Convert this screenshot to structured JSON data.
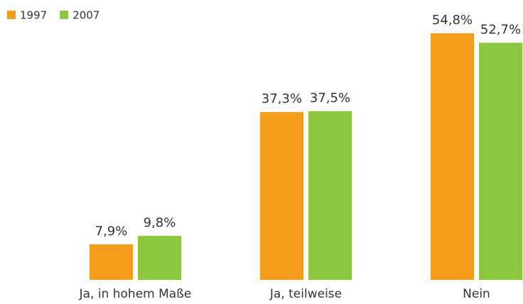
{
  "chart_data": {
    "type": "bar",
    "categories": [
      "Ja, in hohem Maße",
      "Ja, teilweise",
      "Nein"
    ],
    "series": [
      {
        "name": "1997",
        "color": "#f59c1e",
        "values": [
          7.9,
          37.3,
          54.8
        ],
        "value_labels": [
          "7,9%",
          "37,3%",
          "54,8%"
        ]
      },
      {
        "name": "2007",
        "color": "#8dc63f",
        "values": [
          9.8,
          37.5,
          52.7
        ],
        "value_labels": [
          "9,8%",
          "37,5%",
          "52,7%"
        ]
      }
    ],
    "legend": "top-left"
  }
}
